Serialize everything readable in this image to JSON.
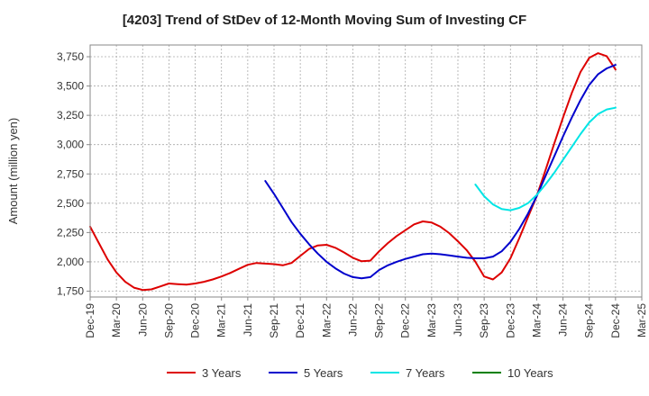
{
  "chart_data": {
    "type": "line",
    "title": "[4203]  Trend of StDev of 12-Month Moving Sum of Investing CF",
    "xlabel": "",
    "ylabel": "Amount (million yen)",
    "ylim": [
      1700,
      3850
    ],
    "yticks": [
      1750,
      2000,
      2250,
      2500,
      2750,
      3000,
      3250,
      3500,
      3750
    ],
    "ytick_labels": [
      "1,750",
      "2,000",
      "2,250",
      "2,500",
      "2,750",
      "3,000",
      "3,250",
      "3,500",
      "3,750"
    ],
    "xticks": [
      "Dec-19",
      "Mar-20",
      "Jun-20",
      "Sep-20",
      "Dec-20",
      "Mar-21",
      "Jun-21",
      "Sep-21",
      "Dec-21",
      "Mar-22",
      "Jun-22",
      "Sep-22",
      "Dec-22",
      "Mar-23",
      "Jun-23",
      "Sep-23",
      "Dec-23",
      "Mar-24",
      "Jun-24",
      "Sep-24",
      "Dec-24",
      "Mar-25"
    ],
    "grid": true,
    "legend_position": "bottom",
    "series": [
      {
        "name": "3 Years",
        "color": "#dd0000",
        "points": [
          [
            "Dec-19",
            2300
          ],
          [
            "Jan-20",
            2160
          ],
          [
            "Feb-20",
            2020
          ],
          [
            "Mar-20",
            1910
          ],
          [
            "Apr-20",
            1830
          ],
          [
            "May-20",
            1780
          ],
          [
            "Jun-20",
            1760
          ],
          [
            "Jul-20",
            1765
          ],
          [
            "Aug-20",
            1790
          ],
          [
            "Sep-20",
            1815
          ],
          [
            "Oct-20",
            1810
          ],
          [
            "Nov-20",
            1805
          ],
          [
            "Dec-20",
            1815
          ],
          [
            "Jan-21",
            1830
          ],
          [
            "Feb-21",
            1850
          ],
          [
            "Mar-21",
            1875
          ],
          [
            "Apr-21",
            1905
          ],
          [
            "May-21",
            1940
          ],
          [
            "Jun-21",
            1975
          ],
          [
            "Jul-21",
            1990
          ],
          [
            "Aug-21",
            1985
          ],
          [
            "Sep-21",
            1980
          ],
          [
            "Oct-21",
            1970
          ],
          [
            "Nov-21",
            1990
          ],
          [
            "Dec-21",
            2050
          ],
          [
            "Jan-22",
            2110
          ],
          [
            "Feb-22",
            2140
          ],
          [
            "Mar-22",
            2145
          ],
          [
            "Apr-22",
            2120
          ],
          [
            "May-22",
            2080
          ],
          [
            "Jun-22",
            2035
          ],
          [
            "Jul-22",
            2005
          ],
          [
            "Aug-22",
            2010
          ],
          [
            "Sep-22",
            2090
          ],
          [
            "Oct-22",
            2160
          ],
          [
            "Nov-22",
            2220
          ],
          [
            "Dec-22",
            2270
          ],
          [
            "Jan-23",
            2320
          ],
          [
            "Feb-23",
            2345
          ],
          [
            "Mar-23",
            2335
          ],
          [
            "Apr-23",
            2300
          ],
          [
            "May-23",
            2245
          ],
          [
            "Jun-23",
            2175
          ],
          [
            "Jul-23",
            2100
          ],
          [
            "Aug-23",
            2000
          ],
          [
            "Sep-23",
            1875
          ],
          [
            "Oct-23",
            1850
          ],
          [
            "Nov-23",
            1910
          ],
          [
            "Dec-23",
            2030
          ],
          [
            "Jan-24",
            2200
          ],
          [
            "Feb-24",
            2380
          ],
          [
            "Mar-24",
            2560
          ],
          [
            "Apr-24",
            2780
          ],
          [
            "May-24",
            3010
          ],
          [
            "Jun-24",
            3230
          ],
          [
            "Jul-24",
            3440
          ],
          [
            "Aug-24",
            3620
          ],
          [
            "Sep-24",
            3740
          ],
          [
            "Oct-24",
            3780
          ],
          [
            "Nov-24",
            3755
          ],
          [
            "Dec-24",
            3640
          ]
        ]
      },
      {
        "name": "5 Years",
        "color": "#0000cc",
        "points": [
          [
            "Aug-21",
            2690
          ],
          [
            "Sep-21",
            2580
          ],
          [
            "Oct-21",
            2460
          ],
          [
            "Nov-21",
            2340
          ],
          [
            "Dec-21",
            2240
          ],
          [
            "Jan-22",
            2150
          ],
          [
            "Feb-22",
            2070
          ],
          [
            "Mar-22",
            2000
          ],
          [
            "Apr-22",
            1945
          ],
          [
            "May-22",
            1900
          ],
          [
            "Jun-22",
            1870
          ],
          [
            "Jul-22",
            1860
          ],
          [
            "Aug-22",
            1870
          ],
          [
            "Sep-22",
            1930
          ],
          [
            "Oct-22",
            1970
          ],
          [
            "Nov-22",
            2000
          ],
          [
            "Dec-22",
            2025
          ],
          [
            "Jan-23",
            2045
          ],
          [
            "Feb-23",
            2065
          ],
          [
            "Mar-23",
            2070
          ],
          [
            "Apr-23",
            2065
          ],
          [
            "May-23",
            2055
          ],
          [
            "Jun-23",
            2045
          ],
          [
            "Jul-23",
            2035
          ],
          [
            "Aug-23",
            2030
          ],
          [
            "Sep-23",
            2030
          ],
          [
            "Oct-23",
            2045
          ],
          [
            "Nov-23",
            2090
          ],
          [
            "Dec-23",
            2170
          ],
          [
            "Jan-24",
            2280
          ],
          [
            "Feb-24",
            2410
          ],
          [
            "Mar-24",
            2560
          ],
          [
            "Apr-24",
            2730
          ],
          [
            "May-24",
            2900
          ],
          [
            "Jun-24",
            3070
          ],
          [
            "Jul-24",
            3230
          ],
          [
            "Aug-24",
            3380
          ],
          [
            "Sep-24",
            3510
          ],
          [
            "Oct-24",
            3600
          ],
          [
            "Nov-24",
            3650
          ],
          [
            "Dec-24",
            3680
          ]
        ]
      },
      {
        "name": "7 Years",
        "color": "#00e5e5",
        "points": [
          [
            "Aug-23",
            2660
          ],
          [
            "Sep-23",
            2560
          ],
          [
            "Oct-23",
            2490
          ],
          [
            "Nov-23",
            2450
          ],
          [
            "Dec-23",
            2440
          ],
          [
            "Jan-24",
            2460
          ],
          [
            "Feb-24",
            2500
          ],
          [
            "Mar-24",
            2570
          ],
          [
            "Apr-24",
            2660
          ],
          [
            "May-24",
            2760
          ],
          [
            "Jun-24",
            2870
          ],
          [
            "Jul-24",
            2980
          ],
          [
            "Aug-24",
            3090
          ],
          [
            "Sep-24",
            3190
          ],
          [
            "Oct-24",
            3260
          ],
          [
            "Nov-24",
            3300
          ],
          [
            "Dec-24",
            3315
          ]
        ]
      },
      {
        "name": "10 Years",
        "color": "#008000",
        "points": []
      }
    ]
  }
}
